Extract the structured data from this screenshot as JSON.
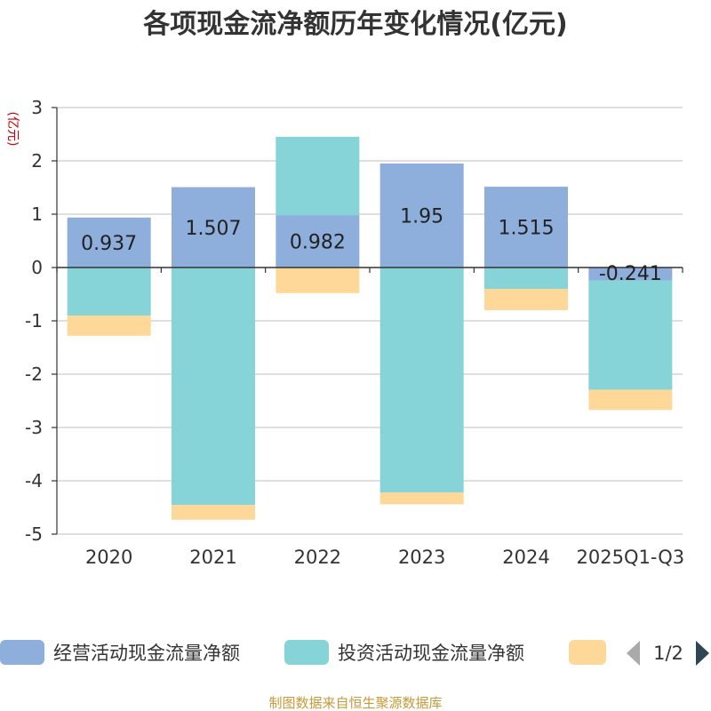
{
  "chart_data": {
    "type": "bar",
    "stacked": true,
    "title": "各项现金流净额历年变化情况(亿元)",
    "ylabel": "(亿元)",
    "ylim": [
      -5,
      3
    ],
    "yticks": [
      3,
      2,
      1,
      0,
      -1,
      -2,
      -3,
      -4,
      -5
    ],
    "categories": [
      "2020",
      "2021",
      "2022",
      "2023",
      "2024",
      "2025Q1-Q3"
    ],
    "series": [
      {
        "name": "经营活动现金流量净额",
        "color": "#8eaedb",
        "values": [
          0.937,
          1.507,
          0.982,
          1.95,
          1.515,
          -0.241
        ]
      },
      {
        "name": "投资活动现金流量净额",
        "color": "#86d4d8",
        "values": [
          -0.9,
          -4.45,
          1.47,
          -4.22,
          -0.4,
          -2.05
        ]
      },
      {
        "name": "",
        "color": "#fdd899",
        "values": [
          -0.38,
          -0.28,
          -0.48,
          -0.22,
          -0.4,
          -0.38
        ]
      }
    ],
    "data_labels": [
      "0.937",
      "1.507",
      "0.982",
      "1.95",
      "1.515",
      "-0.241"
    ]
  },
  "legend": {
    "items": [
      {
        "label": "经营活动现金流量净额"
      },
      {
        "label": "投资活动现金流量净额"
      },
      {
        "label": ""
      }
    ],
    "page": "1/2"
  },
  "source": "制图数据来自恒生聚源数据库"
}
